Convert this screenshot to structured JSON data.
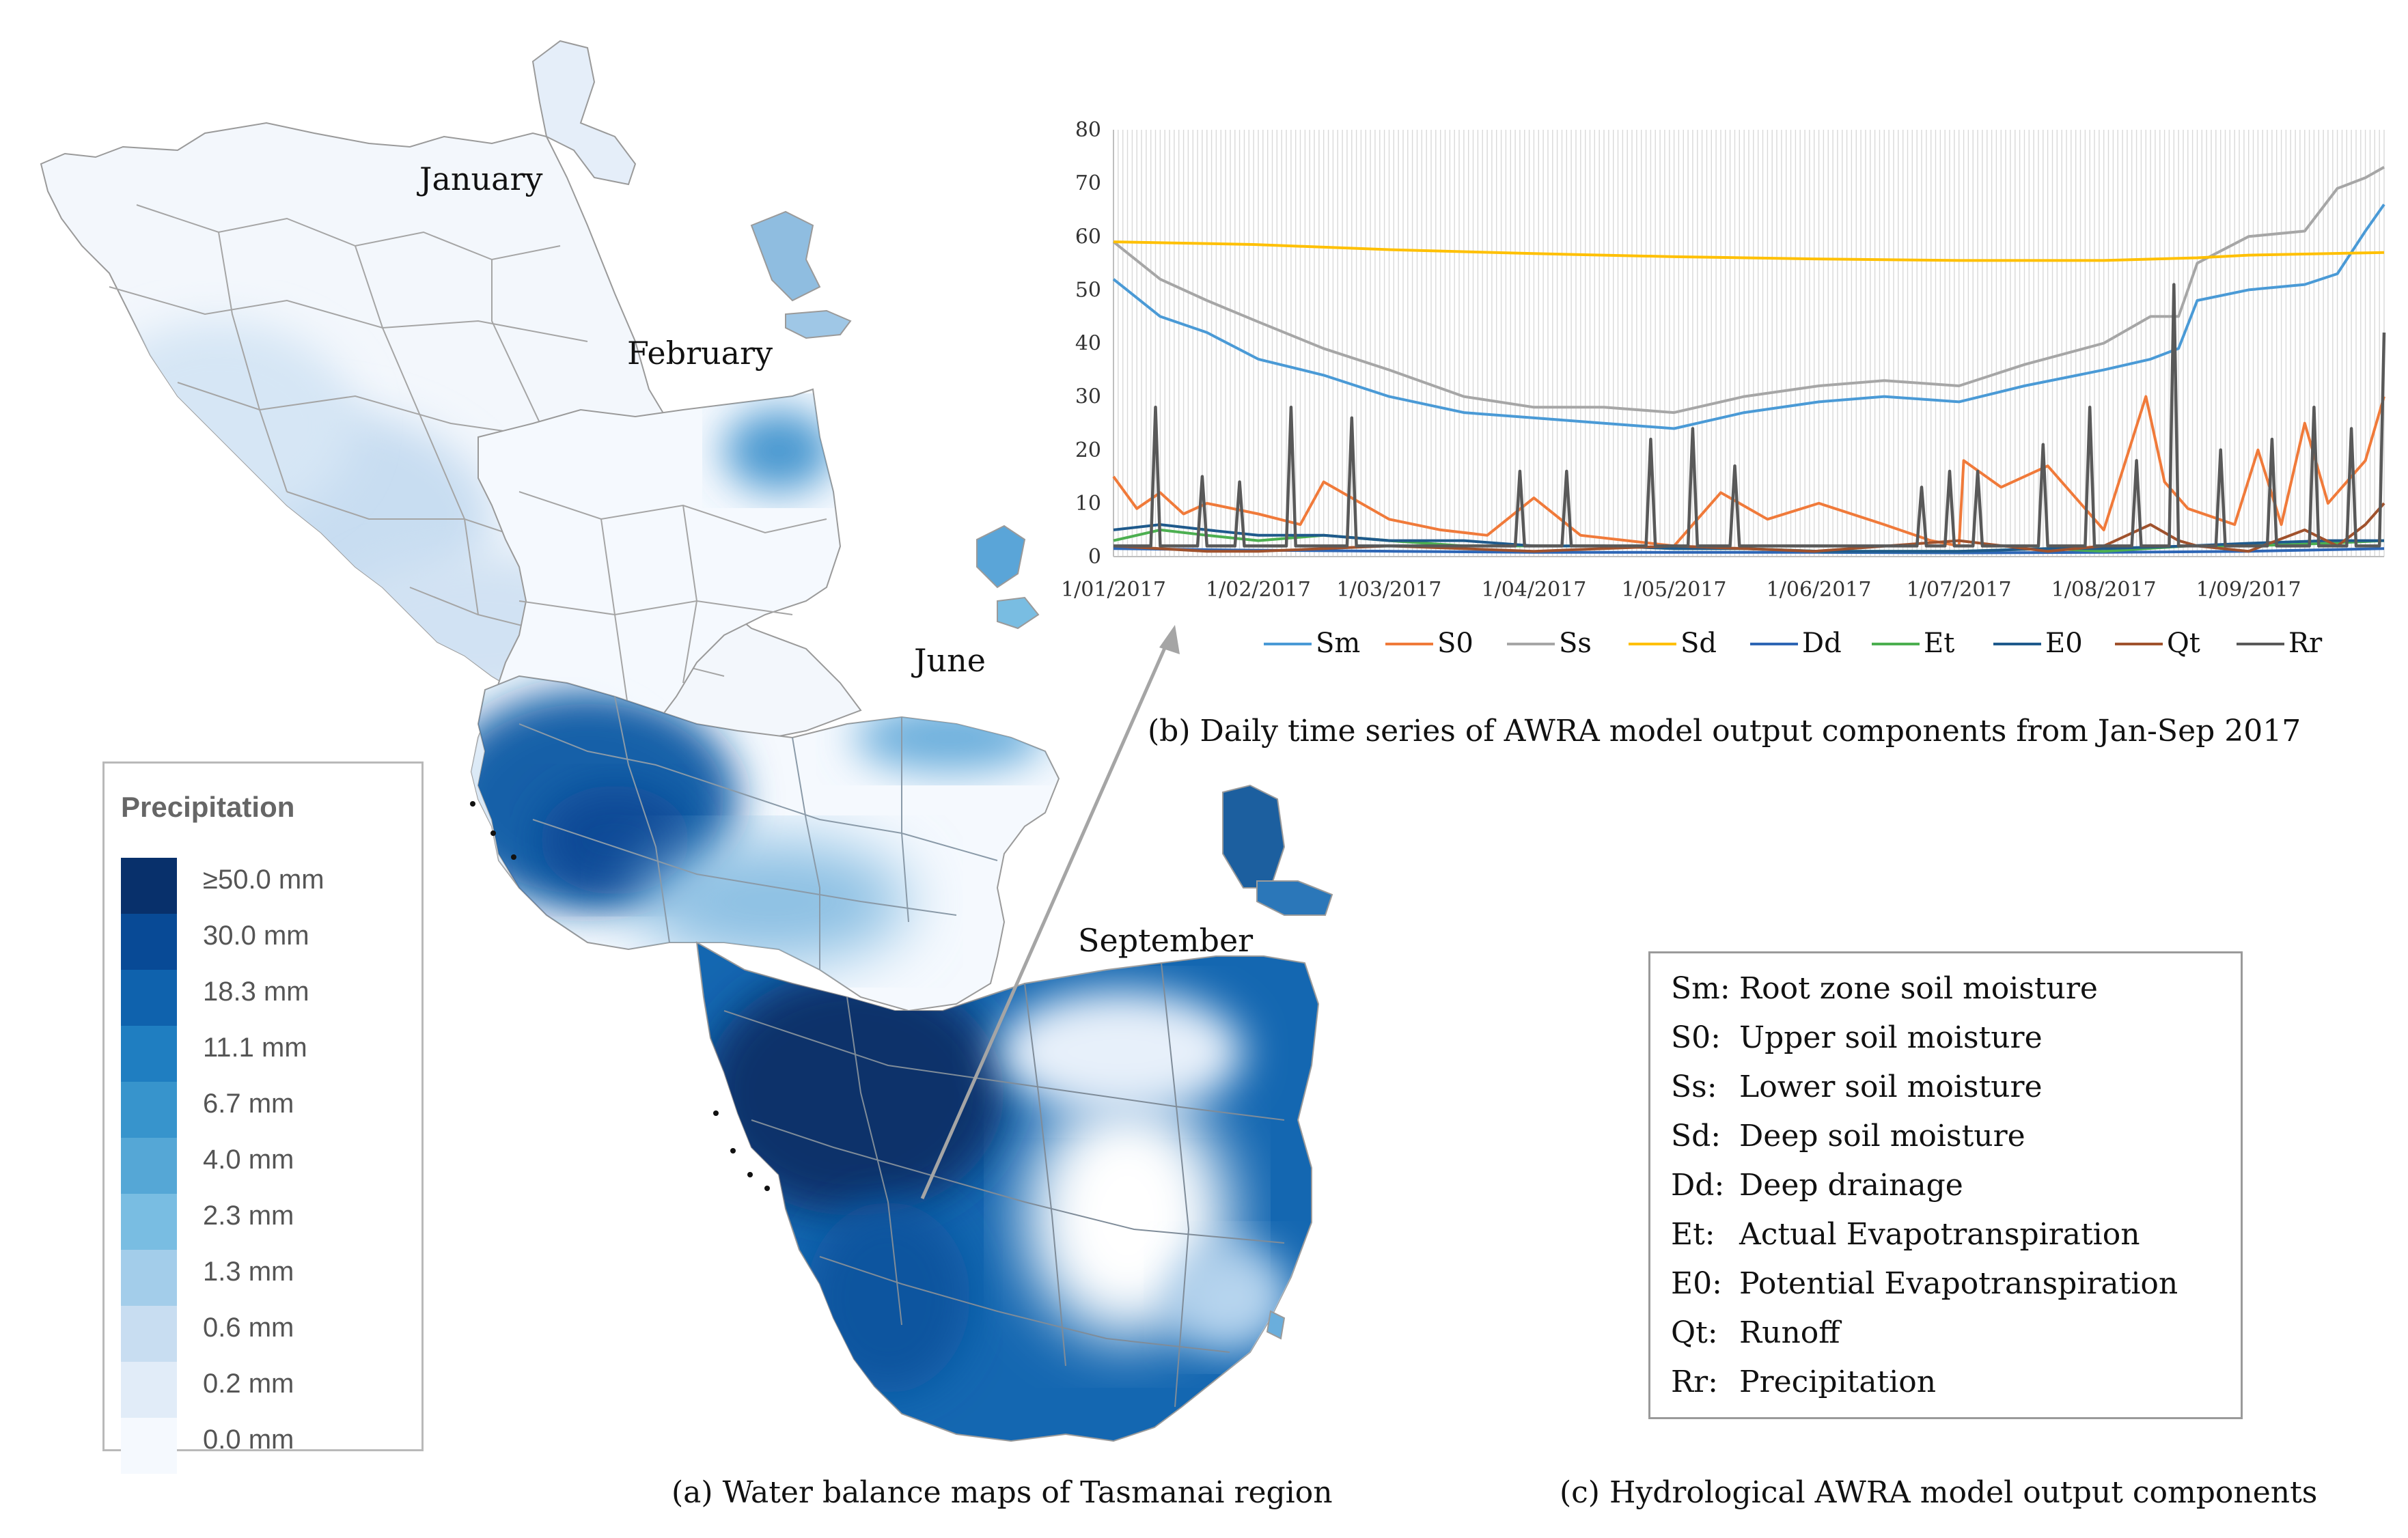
{
  "map": {
    "months": [
      "January",
      "February",
      "June",
      "September"
    ],
    "caption_label": "(a)",
    "caption_text": "Water balance maps of Tasmanai region"
  },
  "precip_legend": {
    "title": "Precipitation",
    "items": [
      {
        "label": "≥50.0 mm",
        "color": "#08306b"
      },
      {
        "label": "30.0 mm",
        "color": "#084a96"
      },
      {
        "label": "18.3 mm",
        "color": "#0f62ad"
      },
      {
        "label": "11.1 mm",
        "color": "#1f7ec1"
      },
      {
        "label": "6.7 mm",
        "color": "#3794cc"
      },
      {
        "label": "4.0 mm",
        "color": "#55a7d6"
      },
      {
        "label": "2.3 mm",
        "color": "#79bde2"
      },
      {
        "label": "1.3 mm",
        "color": "#a3cdea"
      },
      {
        "label": "0.6 mm",
        "color": "#c8ddf1"
      },
      {
        "label": "0.2 mm",
        "color": "#e1ecf8"
      },
      {
        "label": "0.0 mm",
        "color": "#f5f9fe"
      }
    ]
  },
  "chart_caption": {
    "label": "(b)",
    "text": "Daily time series of AWRA model output components from Jan-Sep 2017"
  },
  "components": {
    "caption_label": "(c)",
    "caption_text": "Hydrological AWRA model output components",
    "items": [
      {
        "code": "Sm:",
        "desc": "Root zone soil moisture"
      },
      {
        "code": "S0:",
        "desc": "Upper soil moisture"
      },
      {
        "code": "Ss:",
        "desc": "Lower soil moisture"
      },
      {
        "code": "Sd:",
        "desc": "Deep soil moisture"
      },
      {
        "code": "Dd:",
        "desc": "Deep drainage"
      },
      {
        "code": "Et:",
        "desc": "Actual Evapotranspiration"
      },
      {
        "code": "E0:",
        "desc": "Potential Evapotranspiration"
      },
      {
        "code": "Qt:",
        "desc": "Runoff"
      },
      {
        "code": "Rr:",
        "desc": "Precipitation"
      }
    ]
  },
  "chart_data": {
    "type": "line",
    "title": "Daily time series of AWRA model output components from Jan-Sep 2017",
    "xlabel": "",
    "ylabel": "",
    "ylim": [
      0,
      80
    ],
    "yticks": [
      0,
      10,
      20,
      30,
      40,
      50,
      60,
      70,
      80
    ],
    "xlim_days": [
      0,
      272
    ],
    "x_tick_days": [
      0,
      31,
      59,
      90,
      120,
      151,
      181,
      212,
      243
    ],
    "x_tick_labels": [
      "1/01/2017",
      "1/02/2017",
      "1/03/2017",
      "1/04/2017",
      "1/05/2017",
      "1/06/2017",
      "1/07/2017",
      "1/08/2017",
      "1/09/2017"
    ],
    "grid": "vertical daily gridlines",
    "legend_position": "bottom",
    "series": [
      {
        "name": "Sm",
        "color": "#4a9ad6",
        "days": [
          0,
          10,
          20,
          31,
          45,
          59,
          75,
          90,
          105,
          120,
          135,
          151,
          165,
          181,
          195,
          212,
          222,
          228,
          232,
          243,
          255,
          262,
          268,
          272
        ],
        "values": [
          52,
          45,
          42,
          37,
          34,
          30,
          27,
          26,
          25,
          24,
          27,
          29,
          30,
          29,
          32,
          35,
          37,
          39,
          48,
          50,
          51,
          53,
          61,
          66
        ]
      },
      {
        "name": "S0",
        "color": "#f07a3a",
        "days": [
          0,
          5,
          10,
          15,
          20,
          31,
          40,
          45,
          59,
          70,
          80,
          90,
          100,
          110,
          120,
          130,
          140,
          151,
          165,
          175,
          181,
          182,
          190,
          200,
          210,
          212,
          221,
          225,
          230,
          240,
          245,
          250,
          255,
          260,
          268,
          272
        ],
        "values": [
          15,
          9,
          12,
          8,
          10,
          8,
          6,
          14,
          7,
          5,
          4,
          11,
          4,
          3,
          2,
          12,
          7,
          10,
          6,
          3,
          2,
          18,
          13,
          17,
          7,
          5,
          30,
          14,
          9,
          6,
          20,
          6,
          25,
          10,
          18,
          30
        ]
      },
      {
        "name": "Ss",
        "color": "#a6a6a6",
        "days": [
          0,
          10,
          20,
          31,
          45,
          59,
          75,
          90,
          105,
          120,
          135,
          151,
          165,
          181,
          195,
          212,
          222,
          228,
          232,
          243,
          255,
          262,
          268,
          272
        ],
        "values": [
          59,
          52,
          48,
          44,
          39,
          35,
          30,
          28,
          28,
          27,
          30,
          32,
          33,
          32,
          36,
          40,
          45,
          45,
          55,
          60,
          61,
          69,
          71,
          73
        ]
      },
      {
        "name": "Sd",
        "color": "#ffc000",
        "days": [
          0,
          30,
          60,
          90,
          120,
          150,
          181,
          212,
          232,
          243,
          272
        ],
        "values": [
          59,
          58.5,
          57.5,
          56.8,
          56.2,
          55.8,
          55.5,
          55.5,
          56,
          56.5,
          57
        ]
      },
      {
        "name": "Dd",
        "color": "#2e66b5",
        "days": [
          0,
          30,
          60,
          90,
          120,
          151,
          181,
          212,
          243,
          272
        ],
        "values": [
          1.5,
          1.2,
          1,
          0.8,
          0.8,
          0.8,
          0.7,
          0.8,
          1,
          1.5
        ]
      },
      {
        "name": "Et",
        "color": "#4caf50",
        "days": [
          0,
          10,
          20,
          31,
          45,
          59,
          75,
          90,
          105,
          120,
          135,
          151,
          165,
          181,
          200,
          212,
          230,
          243,
          260,
          272
        ],
        "values": [
          3,
          5,
          4,
          3,
          4,
          3,
          2,
          2,
          2,
          1.5,
          1.5,
          1,
          1,
          1,
          1.5,
          1,
          2,
          2,
          2.5,
          3
        ]
      },
      {
        "name": "E0",
        "color": "#1f5a8c",
        "days": [
          0,
          10,
          20,
          31,
          45,
          59,
          75,
          90,
          105,
          120,
          135,
          151,
          165,
          181,
          200,
          212,
          230,
          243,
          260,
          272
        ],
        "values": [
          5,
          6,
          5,
          4,
          4,
          3,
          3,
          2,
          2,
          1.5,
          1.5,
          1,
          1,
          1,
          1.5,
          1.5,
          2,
          2.5,
          3,
          3
        ]
      },
      {
        "name": "Qt",
        "color": "#a0522d",
        "days": [
          0,
          20,
          31,
          59,
          90,
          120,
          150,
          181,
          200,
          212,
          222,
          228,
          232,
          243,
          255,
          262,
          268,
          272
        ],
        "values": [
          2,
          1,
          1,
          2,
          1,
          2,
          1,
          3,
          1,
          2,
          6,
          3,
          2,
          1,
          5,
          2,
          6,
          10
        ]
      },
      {
        "name": "Rr",
        "color": "#595959",
        "days": [
          0,
          8,
          9,
          10,
          18,
          19,
          20,
          26,
          27,
          28,
          37,
          38,
          39,
          50,
          51,
          52,
          86,
          87,
          88,
          96,
          97,
          98,
          114,
          115,
          116,
          123,
          124,
          125,
          132,
          133,
          134,
          172,
          173,
          174,
          178,
          179,
          180,
          184,
          185,
          186,
          198,
          199,
          200,
          208,
          209,
          210,
          218,
          219,
          220,
          226,
          227,
          228,
          236,
          237,
          238,
          247,
          248,
          249,
          256,
          257,
          258,
          264,
          265,
          266,
          271,
          272
        ],
        "values": [
          2,
          2,
          28,
          2,
          2,
          15,
          2,
          2,
          14,
          2,
          2,
          28,
          2,
          2,
          26,
          2,
          2,
          16,
          2,
          2,
          16,
          2,
          2,
          22,
          2,
          2,
          24,
          2,
          2,
          17,
          2,
          2,
          13,
          2,
          2,
          16,
          2,
          2,
          16,
          2,
          2,
          21,
          2,
          2,
          28,
          2,
          2,
          18,
          2,
          2,
          51,
          2,
          2,
          20,
          2,
          2,
          22,
          2,
          2,
          28,
          2,
          2,
          24,
          2,
          2,
          42
        ]
      }
    ]
  }
}
